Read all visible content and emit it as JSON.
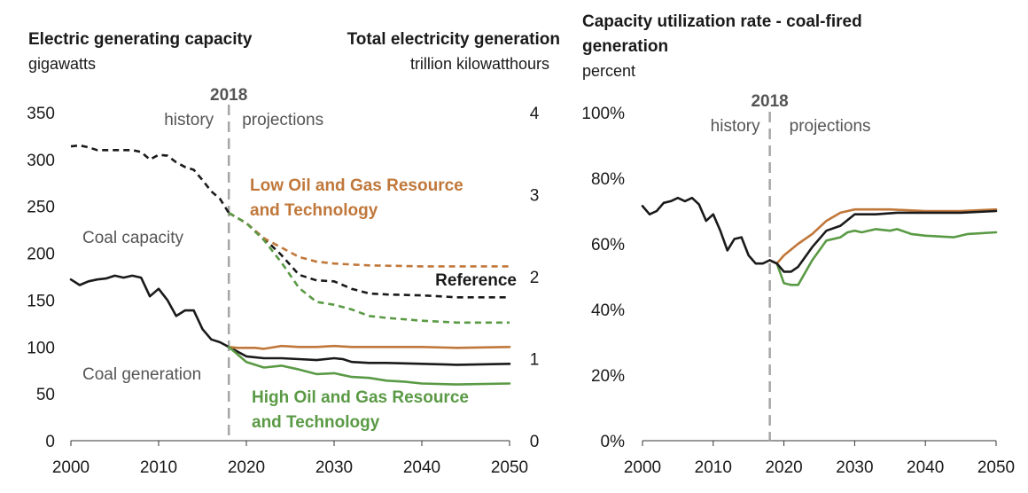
{
  "left_panel": {
    "title_left": "Electric generating capacity",
    "title_right": "Total electricity generation",
    "unit_left": "gigawatts",
    "unit_right": "trillion kilowatthours"
  },
  "right_panel": {
    "title_line1": "Capacity utilization rate - coal-fired",
    "title_line2": "generation",
    "unit": "percent"
  },
  "colors": {
    "reference": "#1a1a1a",
    "low_oil_gas": "#c0773a",
    "high_oil_gas": "#5a9a45",
    "annotation_gray": "#555555",
    "divider_gray": "#a6a6a6"
  },
  "chart_data": [
    {
      "type": "line",
      "name": "left",
      "divider": {
        "x": 2018,
        "label": "2018",
        "left_label": "history",
        "right_label": "projections"
      },
      "xlim": [
        2000,
        2050
      ],
      "x_ticks": [
        "2000",
        "2010",
        "2020",
        "2030",
        "2040",
        "2050"
      ],
      "ylim": [
        0,
        350
      ],
      "y_ticks": [
        "0",
        "50",
        "100",
        "150",
        "200",
        "250",
        "300",
        "350"
      ],
      "ylabel": "gigawatts",
      "y2lim": [
        0,
        4
      ],
      "y2_ticks": [
        "0",
        "1",
        "2",
        "3",
        "4"
      ],
      "y2label": "trillion kilowatthours",
      "annotations": {
        "coal_capacity": "Coal capacity",
        "coal_generation": "Coal generation",
        "low": "Low Oil and Gas Resource and Technology",
        "reference": "Reference",
        "high": "High Oil and Gas Resource and Technology"
      },
      "series": [
        {
          "group": "capacity",
          "scenario": "history",
          "axis": "left",
          "style": "dashed",
          "x": [
            2000,
            2001,
            2002,
            2003,
            2004,
            2005,
            2006,
            2007,
            2008,
            2009,
            2010,
            2011,
            2012,
            2013,
            2014,
            2015,
            2016,
            2017,
            2018
          ],
          "y": [
            314,
            315,
            313,
            310,
            310,
            310,
            310,
            310,
            308,
            300,
            305,
            304,
            297,
            292,
            289,
            278,
            266,
            258,
            243
          ]
        },
        {
          "group": "capacity",
          "scenario": "reference",
          "axis": "left",
          "style": "dashed",
          "x": [
            2018,
            2020,
            2022,
            2024,
            2026,
            2028,
            2030,
            2032,
            2034,
            2036,
            2040,
            2044,
            2050
          ],
          "y": [
            243,
            232,
            216,
            198,
            177,
            171,
            170,
            162,
            157,
            156,
            155,
            153,
            153
          ]
        },
        {
          "group": "capacity",
          "scenario": "low",
          "axis": "left",
          "style": "dashed",
          "x": [
            2018,
            2020,
            2022,
            2024,
            2026,
            2028,
            2030,
            2032,
            2034,
            2040,
            2050
          ],
          "y": [
            243,
            232,
            216,
            206,
            196,
            191,
            189,
            188,
            187,
            186,
            186
          ]
        },
        {
          "group": "capacity",
          "scenario": "high",
          "axis": "left",
          "style": "dashed",
          "x": [
            2018,
            2020,
            2022,
            2024,
            2026,
            2028,
            2030,
            2032,
            2034,
            2036,
            2040,
            2044,
            2050
          ],
          "y": [
            243,
            232,
            214,
            190,
            163,
            148,
            145,
            140,
            133,
            131,
            128,
            126,
            126
          ]
        },
        {
          "group": "generation",
          "scenario": "history",
          "axis": "left",
          "style": "solid",
          "x": [
            2000,
            2001,
            2002,
            2003,
            2004,
            2005,
            2006,
            2007,
            2008,
            2009,
            2010,
            2011,
            2012,
            2013,
            2014,
            2015,
            2016,
            2017,
            2018
          ],
          "y": [
            172,
            166,
            170,
            172,
            173,
            176,
            174,
            176,
            174,
            154,
            162,
            150,
            133,
            139,
            139,
            119,
            108,
            105,
            100
          ]
        },
        {
          "group": "generation",
          "scenario": "reference",
          "axis": "left",
          "style": "solid",
          "x": [
            2018,
            2020,
            2022,
            2024,
            2026,
            2028,
            2030,
            2031,
            2032,
            2034,
            2036,
            2040,
            2044,
            2050
          ],
          "y": [
            100,
            90,
            88,
            88,
            87,
            86,
            88,
            87,
            84,
            83,
            83,
            82,
            81,
            82
          ]
        },
        {
          "group": "generation",
          "scenario": "low",
          "axis": "left",
          "style": "solid",
          "x": [
            2018,
            2019,
            2021,
            2022,
            2024,
            2026,
            2028,
            2030,
            2032,
            2040,
            2044,
            2050
          ],
          "y": [
            100,
            99,
            99,
            98,
            101,
            100,
            100,
            101,
            100,
            100,
            99,
            100
          ]
        },
        {
          "group": "generation",
          "scenario": "high",
          "axis": "left",
          "style": "solid",
          "x": [
            2018,
            2020,
            2022,
            2024,
            2026,
            2028,
            2030,
            2032,
            2034,
            2036,
            2038,
            2040,
            2044,
            2050
          ],
          "y": [
            100,
            84,
            78,
            80,
            76,
            71,
            72,
            68,
            67,
            64,
            63,
            61,
            60,
            61
          ]
        }
      ]
    },
    {
      "type": "line",
      "name": "right",
      "divider": {
        "x": 2018,
        "label": "2018",
        "left_label": "history",
        "right_label": "projections"
      },
      "xlim": [
        2000,
        2050
      ],
      "x_ticks": [
        "2000",
        "2010",
        "2020",
        "2030",
        "2040",
        "2050"
      ],
      "ylim": [
        0,
        100
      ],
      "y_ticks": [
        "0%",
        "20%",
        "40%",
        "60%",
        "80%",
        "100%"
      ],
      "ylabel": "percent",
      "series": [
        {
          "scenario": "history",
          "x": [
            2000,
            2001,
            2002,
            2003,
            2004,
            2005,
            2006,
            2007,
            2008,
            2009,
            2010,
            2011,
            2012,
            2013,
            2014,
            2015,
            2016,
            2017,
            2018
          ],
          "y": [
            71.5,
            69,
            70,
            72.5,
            73,
            74,
            73,
            74,
            72,
            67,
            69,
            64,
            58,
            61.5,
            62,
            56.5,
            54,
            54,
            55
          ]
        },
        {
          "scenario": "low",
          "x": [
            2018,
            2019,
            2020,
            2022,
            2024,
            2026,
            2028,
            2030,
            2035,
            2040,
            2045,
            2050
          ],
          "y": [
            55,
            54,
            56.5,
            60,
            63,
            67,
            69.5,
            70.5,
            70.5,
            70,
            70,
            70.5
          ]
        },
        {
          "scenario": "reference",
          "x": [
            2018,
            2019,
            2020,
            2021,
            2022,
            2024,
            2026,
            2028,
            2030,
            2033,
            2036,
            2040,
            2045,
            2050
          ],
          "y": [
            55,
            54,
            51.5,
            51.5,
            53,
            59,
            64,
            65.5,
            69,
            69,
            69.5,
            69.5,
            69.5,
            70
          ]
        },
        {
          "scenario": "high",
          "x": [
            2018,
            2019,
            2020,
            2021,
            2022,
            2024,
            2026,
            2028,
            2029,
            2030,
            2031,
            2033,
            2035,
            2036,
            2038,
            2040,
            2044,
            2046,
            2050
          ],
          "y": [
            55,
            54,
            48,
            47.5,
            47.5,
            55,
            61,
            62,
            63.5,
            64,
            63.5,
            64.5,
            64,
            64.5,
            63,
            62.5,
            62,
            63,
            63.5
          ]
        }
      ]
    }
  ]
}
